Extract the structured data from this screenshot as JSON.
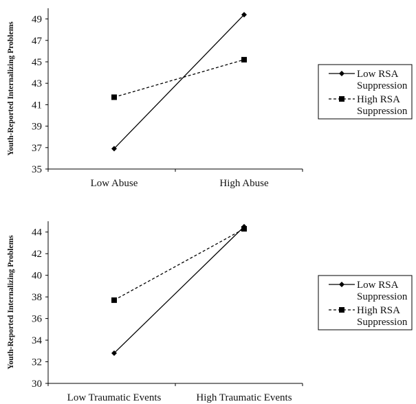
{
  "chart_data": [
    {
      "type": "line",
      "title": "",
      "xlabel": "",
      "ylabel": "Youth-Reported Internalizing Problems",
      "categories": [
        "Low Abuse",
        "High Abuse"
      ],
      "ylim": [
        35,
        50
      ],
      "yticks": [
        35,
        37,
        39,
        41,
        43,
        45,
        47,
        49
      ],
      "grid": false,
      "legend_position": "right",
      "series": [
        {
          "name": "Low RSA Suppression",
          "values": [
            36.9,
            49.4
          ],
          "marker": "diamond",
          "line": "solid",
          "color": "#000000"
        },
        {
          "name": "High RSA Suppression",
          "values": [
            41.7,
            45.2
          ],
          "marker": "square",
          "line": "dashed",
          "color": "#000000"
        }
      ]
    },
    {
      "type": "line",
      "title": "",
      "xlabel": "",
      "ylabel": "Youth-Reported Internalizing Problems",
      "categories": [
        "Low Traumatic Events",
        "High Traumatic Events"
      ],
      "ylim": [
        30,
        45
      ],
      "yticks": [
        30,
        32,
        34,
        36,
        38,
        40,
        42,
        44
      ],
      "grid": false,
      "legend_position": "right",
      "series": [
        {
          "name": "Low RSA Suppression",
          "values": [
            32.8,
            44.5
          ],
          "marker": "diamond",
          "line": "solid",
          "color": "#000000"
        },
        {
          "name": "High RSA Suppression",
          "values": [
            37.7,
            44.3
          ],
          "marker": "square",
          "line": "dashed",
          "color": "#000000"
        }
      ]
    }
  ]
}
